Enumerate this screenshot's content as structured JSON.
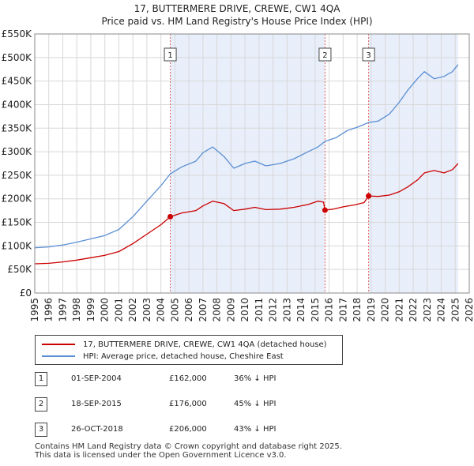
{
  "title_line1": "17, BUTTERMERE DRIVE, CREWE, CW1 4QA",
  "title_line2": "Price paid vs. HM Land Registry's House Price Index (HPI)",
  "legend": {
    "property_label": "17, BUTTERMERE DRIVE, CREWE, CW1 4QA (detached house)",
    "hpi_label": "HPI: Average price, detached house, Cheshire East"
  },
  "colors": {
    "property_line": "#cc0000",
    "hpi_line": "#5b8fd4",
    "shade": "#e8eefa",
    "marker_line": "#e06060"
  },
  "sales": [
    {
      "num": "1",
      "date": "01-SEP-2004",
      "price": "£162,000",
      "diff": "36% ↓ HPI"
    },
    {
      "num": "2",
      "date": "18-SEP-2015",
      "price": "£176,000",
      "diff": "45% ↓ HPI"
    },
    {
      "num": "3",
      "date": "26-OCT-2018",
      "price": "£206,000",
      "diff": "43% ↓ HPI"
    }
  ],
  "footer_line1": "Contains HM Land Registry data © Crown copyright and database right 2025.",
  "footer_line2": "This data is licensed under the Open Government Licence v3.0.",
  "chart_data": {
    "type": "line",
    "title": "Price paid vs. HM Land Registry's House Price Index (HPI)",
    "xlim": [
      1995,
      2026
    ],
    "ylim": [
      0,
      550000
    ],
    "x_ticks": [
      "1995",
      "1996",
      "1997",
      "1998",
      "1999",
      "2000",
      "2001",
      "2002",
      "2003",
      "2004",
      "2005",
      "2006",
      "2007",
      "2008",
      "2009",
      "2010",
      "2011",
      "2012",
      "2013",
      "2014",
      "2015",
      "2016",
      "2017",
      "2018",
      "2019",
      "2020",
      "2021",
      "2022",
      "2023",
      "2024",
      "2025",
      "2026"
    ],
    "y_ticks": [
      {
        "value": 0,
        "label": "£0"
      },
      {
        "value": 50000,
        "label": "£50K"
      },
      {
        "value": 100000,
        "label": "£100K"
      },
      {
        "value": 150000,
        "label": "£150K"
      },
      {
        "value": 200000,
        "label": "£200K"
      },
      {
        "value": 250000,
        "label": "£250K"
      },
      {
        "value": 300000,
        "label": "£300K"
      },
      {
        "value": 350000,
        "label": "£350K"
      },
      {
        "value": 400000,
        "label": "£400K"
      },
      {
        "value": 450000,
        "label": "£450K"
      },
      {
        "value": 500000,
        "label": "£500K"
      },
      {
        "value": 550000,
        "label": "£550K"
      }
    ],
    "shaded_ranges": [
      [
        2004.67,
        2015.71
      ],
      [
        2018.82,
        2025.2
      ]
    ],
    "markers": [
      {
        "label": "1",
        "x": 2004.67,
        "y": 162000
      },
      {
        "label": "2",
        "x": 2015.71,
        "y": 176000
      },
      {
        "label": "3",
        "x": 2018.82,
        "y": 206000
      }
    ],
    "series": [
      {
        "name": "17, BUTTERMERE DRIVE, CREWE, CW1 4QA (detached house)",
        "x": [
          1995.0,
          1996.0,
          1997.0,
          1998.0,
          1999.0,
          2000.0,
          2001.0,
          2002.0,
          2003.0,
          2004.0,
          2004.67,
          2005.5,
          2006.5,
          2007.0,
          2007.7,
          2008.5,
          2009.2,
          2010.0,
          2010.7,
          2011.5,
          2012.5,
          2013.5,
          2014.5,
          2015.2,
          2015.6,
          2015.71,
          2016.3,
          2017.0,
          2017.8,
          2018.5,
          2018.82,
          2019.5,
          2020.3,
          2021.0,
          2021.6,
          2022.3,
          2022.8,
          2023.5,
          2024.2,
          2024.8,
          2025.2
        ],
        "y": [
          62000,
          63000,
          66000,
          70000,
          75000,
          80000,
          88000,
          105000,
          125000,
          145000,
          162000,
          170000,
          175000,
          185000,
          195000,
          190000,
          175000,
          178000,
          182000,
          177000,
          178000,
          182000,
          188000,
          195000,
          193000,
          176000,
          178000,
          183000,
          187000,
          192000,
          206000,
          205000,
          208000,
          215000,
          225000,
          240000,
          255000,
          260000,
          255000,
          262000,
          275000
        ]
      },
      {
        "name": "HPI: Average price, detached house, Cheshire East",
        "x": [
          1995.0,
          1996.0,
          1997.0,
          1998.0,
          1999.0,
          2000.0,
          2001.0,
          2002.0,
          2003.0,
          2004.0,
          2004.67,
          2005.5,
          2006.5,
          2007.0,
          2007.7,
          2008.5,
          2009.2,
          2010.0,
          2010.7,
          2011.5,
          2012.5,
          2013.5,
          2014.5,
          2015.2,
          2015.71,
          2016.5,
          2017.3,
          2018.0,
          2018.82,
          2019.5,
          2020.3,
          2021.0,
          2021.6,
          2022.3,
          2022.8,
          2023.5,
          2024.2,
          2024.8,
          2025.2
        ],
        "y": [
          96000,
          98000,
          102000,
          108000,
          115000,
          122000,
          135000,
          162000,
          195000,
          228000,
          253000,
          268000,
          280000,
          298000,
          310000,
          290000,
          265000,
          275000,
          280000,
          270000,
          275000,
          285000,
          300000,
          310000,
          322000,
          330000,
          345000,
          352000,
          362000,
          365000,
          380000,
          405000,
          430000,
          455000,
          470000,
          455000,
          460000,
          470000,
          485000
        ]
      }
    ]
  }
}
